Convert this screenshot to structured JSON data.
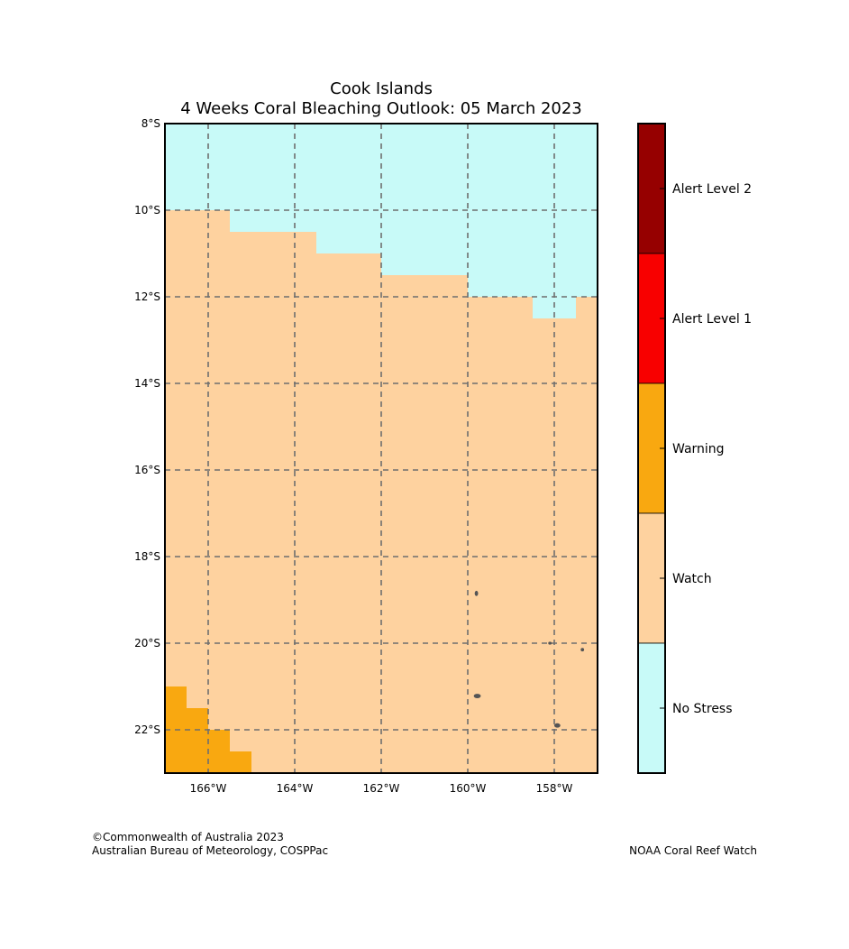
{
  "title_line1": "Cook Islands",
  "title_line2": "4 Weeks Coral Bleaching Outlook: 05 March 2023",
  "colors": {
    "no_stress": "#c8faf8",
    "watch": "#fed29f",
    "warning": "#f9a810",
    "alert1": "#f80000",
    "alert2": "#960000",
    "grid": "#6e6e6e",
    "land": "#555555"
  },
  "map": {
    "lon_range": [
      -167,
      -157
    ],
    "lat_range": [
      -23,
      -8
    ],
    "lon_ticks": [
      {
        "value": -166,
        "label": "166°W"
      },
      {
        "value": -164,
        "label": "164°W"
      },
      {
        "value": -162,
        "label": "162°W"
      },
      {
        "value": -160,
        "label": "160°W"
      },
      {
        "value": -158,
        "label": "158°W"
      }
    ],
    "lat_ticks": [
      {
        "value": -8,
        "label": "8°S"
      },
      {
        "value": -10,
        "label": "10°S"
      },
      {
        "value": -12,
        "label": "12°S"
      },
      {
        "value": -14,
        "label": "14°S"
      },
      {
        "value": -16,
        "label": "16°S"
      },
      {
        "value": -18,
        "label": "18°S"
      },
      {
        "value": -20,
        "label": "20°S"
      },
      {
        "value": -22,
        "label": "22°S"
      }
    ],
    "background_category": "watch",
    "regions": [
      {
        "name": "no-stress-north",
        "category": "no_stress",
        "polygon": [
          [
            -167,
            -8
          ],
          [
            -157,
            -8
          ],
          [
            -157,
            -12
          ],
          [
            -157.5,
            -12
          ],
          [
            -157.5,
            -12.5
          ],
          [
            -158.5,
            -12.5
          ],
          [
            -158.5,
            -12
          ],
          [
            -160,
            -12
          ],
          [
            -160,
            -11.5
          ],
          [
            -162,
            -11.5
          ],
          [
            -162,
            -11
          ],
          [
            -163.5,
            -11
          ],
          [
            -163.5,
            -10.5
          ],
          [
            -165.5,
            -10.5
          ],
          [
            -165.5,
            -10
          ],
          [
            -167,
            -10
          ]
        ]
      },
      {
        "name": "warning-southwest",
        "category": "warning",
        "polygon": [
          [
            -167,
            -21
          ],
          [
            -166.5,
            -21
          ],
          [
            -166.5,
            -21.5
          ],
          [
            -166,
            -21.5
          ],
          [
            -166,
            -22
          ],
          [
            -165.5,
            -22
          ],
          [
            -165.5,
            -22.5
          ],
          [
            -165,
            -22.5
          ],
          [
            -165,
            -23
          ],
          [
            -167,
            -23
          ]
        ]
      }
    ],
    "islands": [
      {
        "lon": -159.8,
        "lat": -18.85,
        "rx": 1.5,
        "ry": 2.5
      },
      {
        "lon": -158.1,
        "lat": -20.0,
        "rx": 1.5,
        "ry": 1.2
      },
      {
        "lon": -157.35,
        "lat": -20.15,
        "rx": 1.5,
        "ry": 1.5
      },
      {
        "lon": -159.78,
        "lat": -21.22,
        "rx": 3.5,
        "ry": 2.0
      },
      {
        "lon": -157.93,
        "lat": -21.9,
        "rx": 3.0,
        "ry": 2.0
      }
    ]
  },
  "legend": [
    {
      "label": "Alert Level 2",
      "category": "alert2"
    },
    {
      "label": "Alert Level 1",
      "category": "alert1"
    },
    {
      "label": "Warning",
      "category": "warning"
    },
    {
      "label": "Watch",
      "category": "watch"
    },
    {
      "label": "No Stress",
      "category": "no_stress"
    }
  ],
  "credits": {
    "left_line1": "©Commonwealth of Australia 2023",
    "left_line2": "Australian Bureau of Meteorology, COSPPac",
    "right": "NOAA Coral Reef Watch"
  }
}
